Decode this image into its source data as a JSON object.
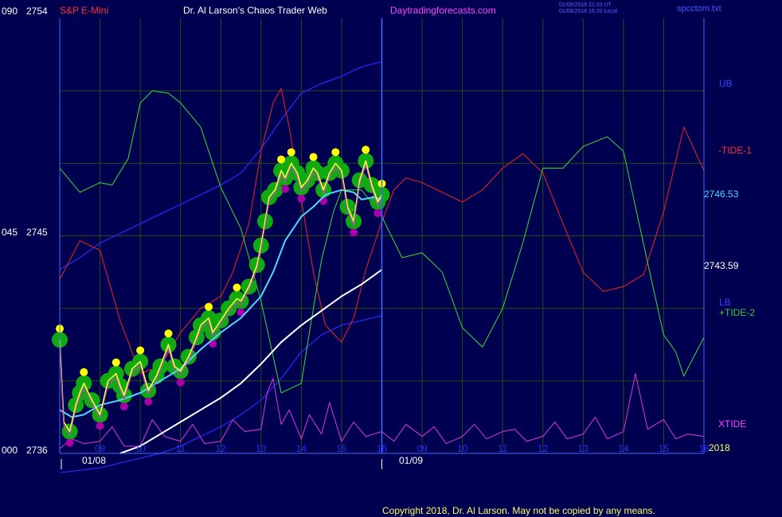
{
  "header": {
    "symbol": "S&P E-Mini",
    "title": "Dr. Al Larson's Chaos Trader Web",
    "site": "Daytradingforecasts.com",
    "stamp1": "01/08/2018 21:20 UT",
    "stamp2": "01/08/2018 16:20 Local",
    "file": "spcctom.txt"
  },
  "footer": {
    "copyright": "Copyright 2018, Dr. Al Larson. May not be copied by any means."
  },
  "left_axis": [
    {
      "prefix": "090",
      "price": "2754"
    },
    {
      "prefix": "045",
      "price": "2745"
    },
    {
      "prefix": "000",
      "price": "2736"
    }
  ],
  "right_labels": {
    "ub": "UB",
    "tide1": "-TIDE-1",
    "ma_fast": "2746.53",
    "ma_slow": "2743.59",
    "lb": "LB",
    "tide2": "+TIDE-2",
    "xtide": "XTIDE",
    "year": "2018"
  },
  "colors": {
    "background": "#000050",
    "grid": "#2d4a14",
    "price_frame": "#3a6cff",
    "ub": "#2a2aff",
    "tide1": "#e02020",
    "tide2": "#33cc33",
    "xtide": "#cc33cc",
    "ma_fast": "#4fd8ff",
    "ma_slow": "#ffffff",
    "price": "#ffff44",
    "green_dots": "#11aa11",
    "yellow_dots": "#ffff00",
    "magenta_dots": "#aa00aa",
    "title": "#ffffff",
    "symbol": "#ff3030",
    "site": "#ff44ff"
  },
  "chart_data": {
    "type": "line",
    "title": "Dr. Al Larson's Chaos Trader Web",
    "symbol": "S&P E-Mini",
    "x_ticks": [
      "09",
      "10",
      "11",
      "12",
      "13",
      "14",
      "15",
      "16",
      "09",
      "10",
      "11",
      "12",
      "13",
      "14",
      "15",
      "16"
    ],
    "date_labels": [
      "01/08",
      "01/09"
    ],
    "ylim": [
      2736,
      2754
    ],
    "y_ticks": [
      2736,
      2745,
      2754
    ],
    "hour_domain": [
      8,
      24
    ],
    "series": [
      {
        "name": "UB",
        "kind": "channel",
        "x": [
          8.0,
          8.5,
          9.0,
          9.5,
          10.0,
          10.5,
          11.0,
          11.5,
          12.0,
          12.5,
          13.0,
          13.5,
          14.0,
          14.5,
          15.0,
          15.5,
          16.0
        ],
        "values": [
          2743.6,
          2744.1,
          2744.7,
          2745.1,
          2745.5,
          2745.9,
          2746.3,
          2746.7,
          2747.1,
          2747.6,
          2748.6,
          2749.8,
          2750.9,
          2751.3,
          2751.6,
          2752.0,
          2752.2
        ]
      },
      {
        "name": "LB",
        "kind": "channel",
        "x": [
          8.0,
          8.5,
          9.0,
          9.5,
          10.0,
          10.5,
          11.0,
          11.5,
          12.0,
          12.5,
          13.0,
          13.5,
          14.0,
          14.5,
          15.0,
          15.5,
          16.0
        ],
        "values": [
          2735.2,
          2735.3,
          2735.4,
          2735.6,
          2735.8,
          2736.0,
          2736.3,
          2736.7,
          2737.1,
          2737.6,
          2738.2,
          2739.1,
          2740.2,
          2740.9,
          2741.3,
          2741.5,
          2741.7
        ]
      },
      {
        "name": "2746.53",
        "kind": "ma_fast",
        "x": [
          8.0,
          8.3,
          8.6,
          9.0,
          9.5,
          10.0,
          10.5,
          11.0,
          11.5,
          12.0,
          12.5,
          13.0,
          13.3,
          13.6,
          14.0,
          14.3,
          14.6,
          15.0,
          15.3,
          15.5,
          15.8,
          16.0
        ],
        "values": [
          2737.8,
          2737.5,
          2737.6,
          2738.0,
          2738.2,
          2738.5,
          2739.0,
          2739.5,
          2740.3,
          2741.0,
          2741.6,
          2742.5,
          2743.5,
          2744.8,
          2745.8,
          2746.2,
          2746.7,
          2746.9,
          2746.8,
          2746.5,
          2746.6,
          2746.5
        ]
      },
      {
        "name": "2743.59",
        "kind": "ma_slow",
        "x": [
          9.5,
          10.0,
          10.5,
          11.0,
          11.5,
          12.0,
          12.5,
          13.0,
          13.5,
          14.0,
          14.5,
          15.0,
          15.5,
          16.0
        ],
        "values": [
          2736.0,
          2736.3,
          2736.8,
          2737.3,
          2737.8,
          2738.3,
          2738.9,
          2739.7,
          2740.6,
          2741.3,
          2741.9,
          2742.5,
          2743.0,
          2743.6
        ]
      },
      {
        "name": "price",
        "kind": "price",
        "x": [
          8.0,
          8.1,
          8.25,
          8.4,
          8.5,
          8.6,
          8.8,
          9.0,
          9.2,
          9.4,
          9.5,
          9.6,
          9.8,
          10.0,
          10.2,
          10.4,
          10.5,
          10.7,
          10.85,
          11.0,
          11.2,
          11.4,
          11.5,
          11.7,
          11.8,
          12.0,
          12.2,
          12.4,
          12.5,
          12.7,
          12.9,
          13.0,
          13.1,
          13.2,
          13.35,
          13.5,
          13.6,
          13.75,
          13.9,
          14.0,
          14.15,
          14.3,
          14.4,
          14.55,
          14.7,
          14.85,
          15.0,
          15.15,
          15.3,
          15.45,
          15.6,
          15.75,
          15.9,
          16.0
        ],
        "values": [
          2740.7,
          2737.3,
          2736.9,
          2738.0,
          2738.5,
          2738.9,
          2738.2,
          2737.6,
          2739.0,
          2739.3,
          2738.8,
          2738.4,
          2739.5,
          2739.8,
          2738.6,
          2739.2,
          2739.6,
          2740.5,
          2739.6,
          2739.4,
          2740.0,
          2740.8,
          2741.3,
          2741.6,
          2741.0,
          2741.5,
          2742.0,
          2742.4,
          2742.3,
          2742.9,
          2743.8,
          2744.6,
          2745.6,
          2746.6,
          2746.9,
          2747.7,
          2747.4,
          2748.0,
          2747.6,
          2747.0,
          2747.3,
          2747.8,
          2747.6,
          2746.9,
          2747.6,
          2748.0,
          2747.7,
          2746.2,
          2745.6,
          2747.3,
          2748.1,
          2747.1,
          2746.4,
          2746.7
        ]
      },
      {
        "name": "-TIDE-1",
        "kind": "tide",
        "x": [
          8.0,
          8.5,
          9.0,
          9.5,
          10.0,
          10.5,
          11.0,
          11.5,
          12.0,
          12.3,
          12.7,
          13.0,
          13.3,
          13.5,
          13.7,
          14.0,
          14.3,
          14.6,
          15.0,
          15.3,
          15.6,
          16.0,
          16.3,
          16.6,
          17.0,
          17.5,
          18.0,
          18.5,
          19.0,
          19.5,
          20.0,
          20.5,
          21.0,
          21.5,
          22.0,
          22.5,
          23.0,
          23.5,
          24.0
        ],
        "values": [
          2743.2,
          2744.8,
          2744.4,
          2741.5,
          2739.3,
          2739.6,
          2741.0,
          2742.0,
          2742.5,
          2743.5,
          2745.5,
          2748.5,
          2750.5,
          2751.1,
          2749.5,
          2746.5,
          2743.5,
          2741.3,
          2740.6,
          2741.6,
          2743.6,
          2745.6,
          2746.9,
          2747.4,
          2747.2,
          2746.8,
          2746.4,
          2746.9,
          2747.8,
          2748.4,
          2747.6,
          2745.5,
          2743.5,
          2742.7,
          2742.9,
          2743.4,
          2746.0,
          2749.5,
          2747.7
        ]
      },
      {
        "name": "+TIDE-2",
        "kind": "tide",
        "x": [
          8.0,
          8.5,
          9.0,
          9.3,
          9.7,
          10.0,
          10.3,
          10.7,
          11.0,
          11.5,
          12.0,
          12.5,
          13.0,
          13.5,
          14.0,
          14.2,
          14.5,
          14.8,
          15.0,
          15.5,
          16.0,
          16.5,
          17.0,
          17.5,
          18.0,
          18.5,
          19.0,
          19.5,
          20.0,
          20.5,
          21.0,
          21.3,
          21.6,
          22.0,
          22.3,
          22.6,
          23.0,
          23.3,
          23.5,
          24.0
        ],
        "values": [
          2747.8,
          2746.8,
          2747.2,
          2747.1,
          2748.2,
          2750.5,
          2751.0,
          2750.9,
          2750.5,
          2749.5,
          2747.0,
          2745.3,
          2742.3,
          2738.5,
          2738.9,
          2741.0,
          2744.0,
          2746.0,
          2746.9,
          2746.9,
          2745.8,
          2744.1,
          2744.3,
          2743.5,
          2741.2,
          2740.4,
          2742.0,
          2744.7,
          2747.8,
          2747.8,
          2748.7,
          2748.9,
          2749.1,
          2748.5,
          2746.2,
          2743.9,
          2740.9,
          2740.2,
          2739.2,
          2740.8
        ]
      },
      {
        "name": "XTIDE",
        "kind": "tide",
        "x": [
          8.0,
          8.3,
          8.6,
          9.0,
          9.3,
          9.6,
          10.0,
          10.3,
          10.6,
          11.0,
          11.3,
          11.6,
          12.0,
          12.3,
          12.6,
          13.0,
          13.15,
          13.3,
          13.5,
          13.7,
          14.0,
          14.2,
          14.5,
          14.7,
          15.0,
          15.3,
          15.6,
          16.0,
          16.3,
          16.6,
          17.0,
          17.3,
          17.6,
          18.0,
          18.3,
          18.6,
          19.0,
          19.3,
          19.6,
          20.0,
          20.3,
          20.6,
          21.0,
          21.3,
          21.6,
          22.0,
          22.3,
          22.6,
          23.0,
          23.3,
          23.6,
          24.0
        ],
        "values": [
          2736.2,
          2736.6,
          2736.4,
          2736.5,
          2737.1,
          2736.3,
          2736.3,
          2737.4,
          2736.7,
          2736.5,
          2737.2,
          2736.4,
          2736.5,
          2737.4,
          2736.9,
          2737.0,
          2738.5,
          2739.1,
          2737.2,
          2737.8,
          2736.6,
          2737.6,
          2736.8,
          2738.1,
          2736.5,
          2737.3,
          2736.7,
          2736.9,
          2736.5,
          2737.2,
          2736.7,
          2737.1,
          2736.4,
          2736.7,
          2737.2,
          2736.6,
          2736.9,
          2737.0,
          2736.5,
          2736.7,
          2737.3,
          2736.6,
          2736.8,
          2737.5,
          2736.6,
          2736.9,
          2739.3,
          2737.0,
          2737.4,
          2736.6,
          2736.8,
          2736.7
        ]
      }
    ]
  }
}
